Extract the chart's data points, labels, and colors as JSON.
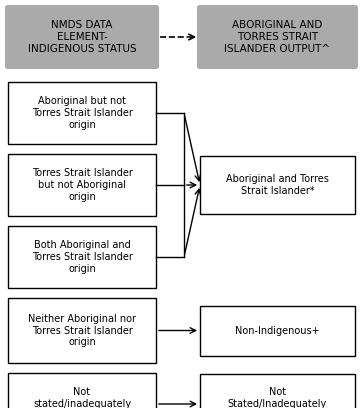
{
  "bg_color": "#ffffff",
  "fig_width": 3.63,
  "fig_height": 4.08,
  "dpi": 100,
  "header_left": "NMDS DATA\nELEMENT-\nINDIGENOUS STATUS",
  "header_right": "ABORIGINAL AND\nTORRES STRAIT\nISLANDER OUTPUT^",
  "header_fill": "#aaaaaa",
  "header_text_color": "#000000",
  "left_boxes": [
    "Aboriginal but not\nTorres Strait Islander\norigin",
    "Torres Strait Islander\nbut not Aboriginal\norigin",
    "Both Aboriginal and\nTorres Strait Islander\norigin",
    "Neither Aboriginal nor\nTorres Strait Islander\norigin",
    "Not\nstated/inadequately\ndescribed"
  ],
  "right_boxes": [
    "Aboriginal and Torres\nStrait Islander*",
    "Non-Indigenous+",
    "Not\nStated/Inadequately\ndescribed+"
  ],
  "box_edge_color": "#000000",
  "box_fill": "#ffffff",
  "text_color": "#000000",
  "arrow_color": "#000000",
  "dashed_color": "#000000"
}
